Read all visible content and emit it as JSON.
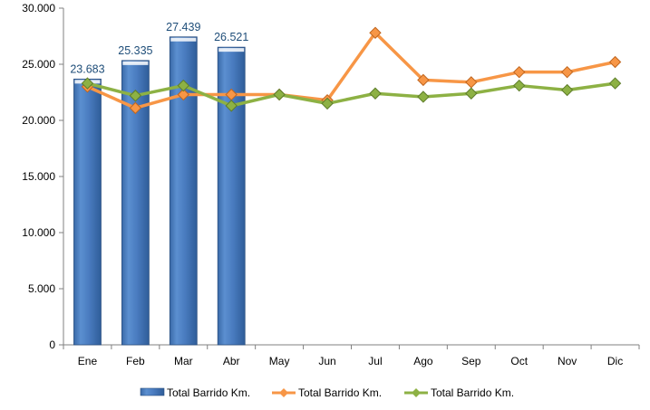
{
  "chart_data": {
    "type": "bar",
    "categories": [
      "Ene",
      "Feb",
      "Mar",
      "Abr",
      "May",
      "Jun",
      "Jul",
      "Ago",
      "Sep",
      "Oct",
      "Nov",
      "Dic"
    ],
    "ylim": [
      0,
      30000
    ],
    "yticks": [
      0,
      5000,
      10000,
      15000,
      20000,
      25000,
      30000
    ],
    "ytick_labels": [
      "0",
      "5.000",
      "10.000",
      "15.000",
      "20.000",
      "25.000",
      "30.000"
    ],
    "grid": false,
    "legend_position": "bottom",
    "series": [
      {
        "name": "Total Barrido Km.",
        "type": "bar",
        "color": "#4f81bd",
        "values": [
          23683,
          25335,
          27439,
          26521,
          null,
          null,
          null,
          null,
          null,
          null,
          null,
          null
        ],
        "data_labels": [
          "23.683",
          "25.335",
          "27.439",
          "26.521"
        ]
      },
      {
        "name": "Total Barrido Km.",
        "type": "line",
        "marker": "diamond",
        "color": "#f79646",
        "values": [
          23000,
          21100,
          22300,
          22300,
          22300,
          21800,
          27800,
          23600,
          23400,
          24300,
          24300,
          25200
        ]
      },
      {
        "name": "Total Barrido Km.",
        "type": "line",
        "marker": "diamond",
        "color": "#8db144",
        "values": [
          23300,
          22200,
          23100,
          21300,
          22300,
          21500,
          22400,
          22100,
          22400,
          23100,
          22700,
          23300
        ]
      }
    ]
  }
}
